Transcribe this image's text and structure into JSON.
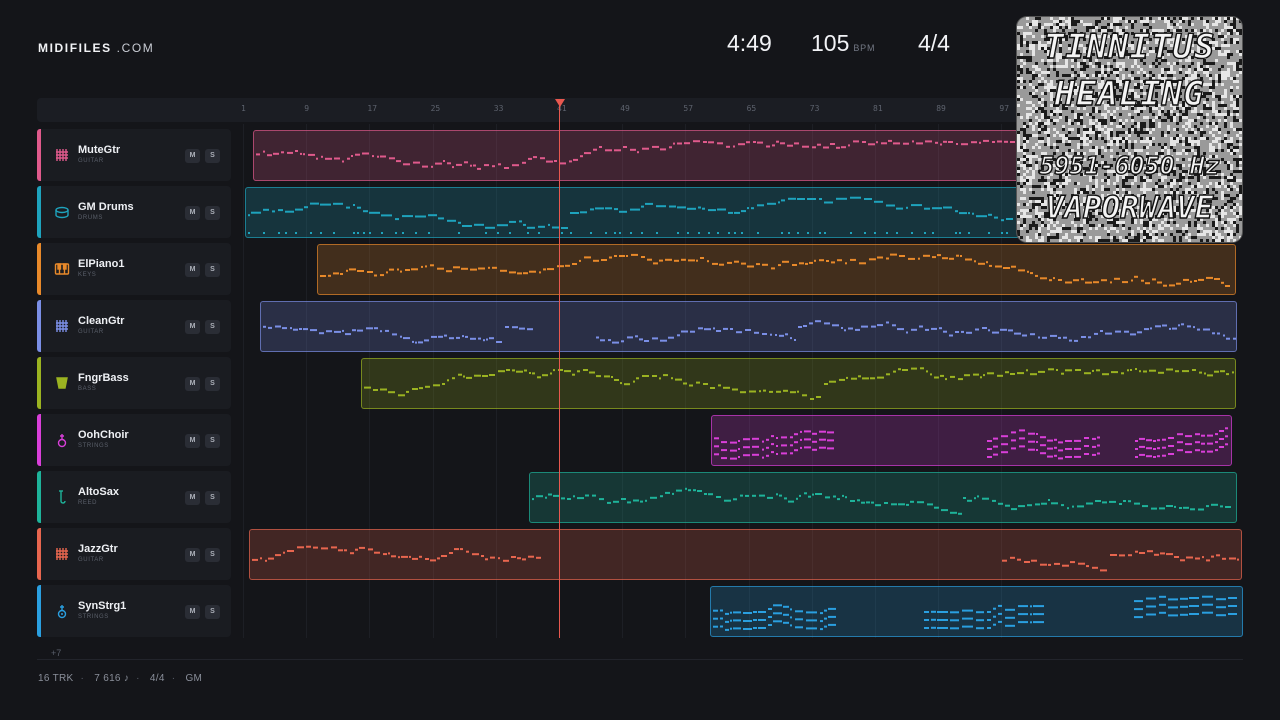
{
  "brand": {
    "bold": "MIDIFILES",
    "light": ".COM"
  },
  "stats": {
    "time": "4:49",
    "bpm": "105",
    "bpm_unit": "BPM",
    "signature": "4/4"
  },
  "ruler": {
    "ticks": [
      "1",
      "9",
      "17",
      "25",
      "33",
      "41",
      "49",
      "57",
      "65",
      "73",
      "81",
      "89",
      "97"
    ]
  },
  "playhead_bar": 41,
  "tracks": [
    {
      "name": "MuteGtr",
      "type": "GUITAR",
      "color": "#e05a8c",
      "icon": "guitar-grid-icon",
      "mute": "M",
      "solo": "S"
    },
    {
      "name": "GM Drums",
      "type": "DRUMS",
      "color": "#1ea3bd",
      "icon": "drum-icon",
      "mute": "M",
      "solo": "S"
    },
    {
      "name": "ElPiano1",
      "type": "KEYS",
      "color": "#e8892a",
      "icon": "piano-keys-icon",
      "mute": "M",
      "solo": "S"
    },
    {
      "name": "CleanGtr",
      "type": "GUITAR",
      "color": "#7b8fe6",
      "icon": "guitar-grid-icon",
      "mute": "M",
      "solo": "S"
    },
    {
      "name": "FngrBass",
      "type": "BASS",
      "color": "#9bb321",
      "icon": "bass-icon",
      "mute": "M",
      "solo": "S"
    },
    {
      "name": "OohChoir",
      "type": "STRINGS",
      "color": "#d93fd9",
      "icon": "choir-icon",
      "mute": "M",
      "solo": "S"
    },
    {
      "name": "AltoSax",
      "type": "REED",
      "color": "#1eb39a",
      "icon": "sax-icon",
      "mute": "M",
      "solo": "S"
    },
    {
      "name": "JazzGtr",
      "type": "GUITAR",
      "color": "#e8664f",
      "icon": "guitar-grid-icon",
      "mute": "M",
      "solo": "S"
    },
    {
      "name": "SynStrg1",
      "type": "STRINGS",
      "color": "#2a9fe0",
      "icon": "strings-icon",
      "mute": "M",
      "solo": "S"
    }
  ],
  "more_tracks": "+7",
  "footer": {
    "tracks": "16 TRK",
    "notes": "7 616 ♪",
    "signature": "4/4",
    "mode": "GM"
  },
  "overlay": {
    "line1": "TINNITUS",
    "line2": "HEALING",
    "line3": "5951-6050 Hz",
    "line4": "VAPORWAVE"
  }
}
